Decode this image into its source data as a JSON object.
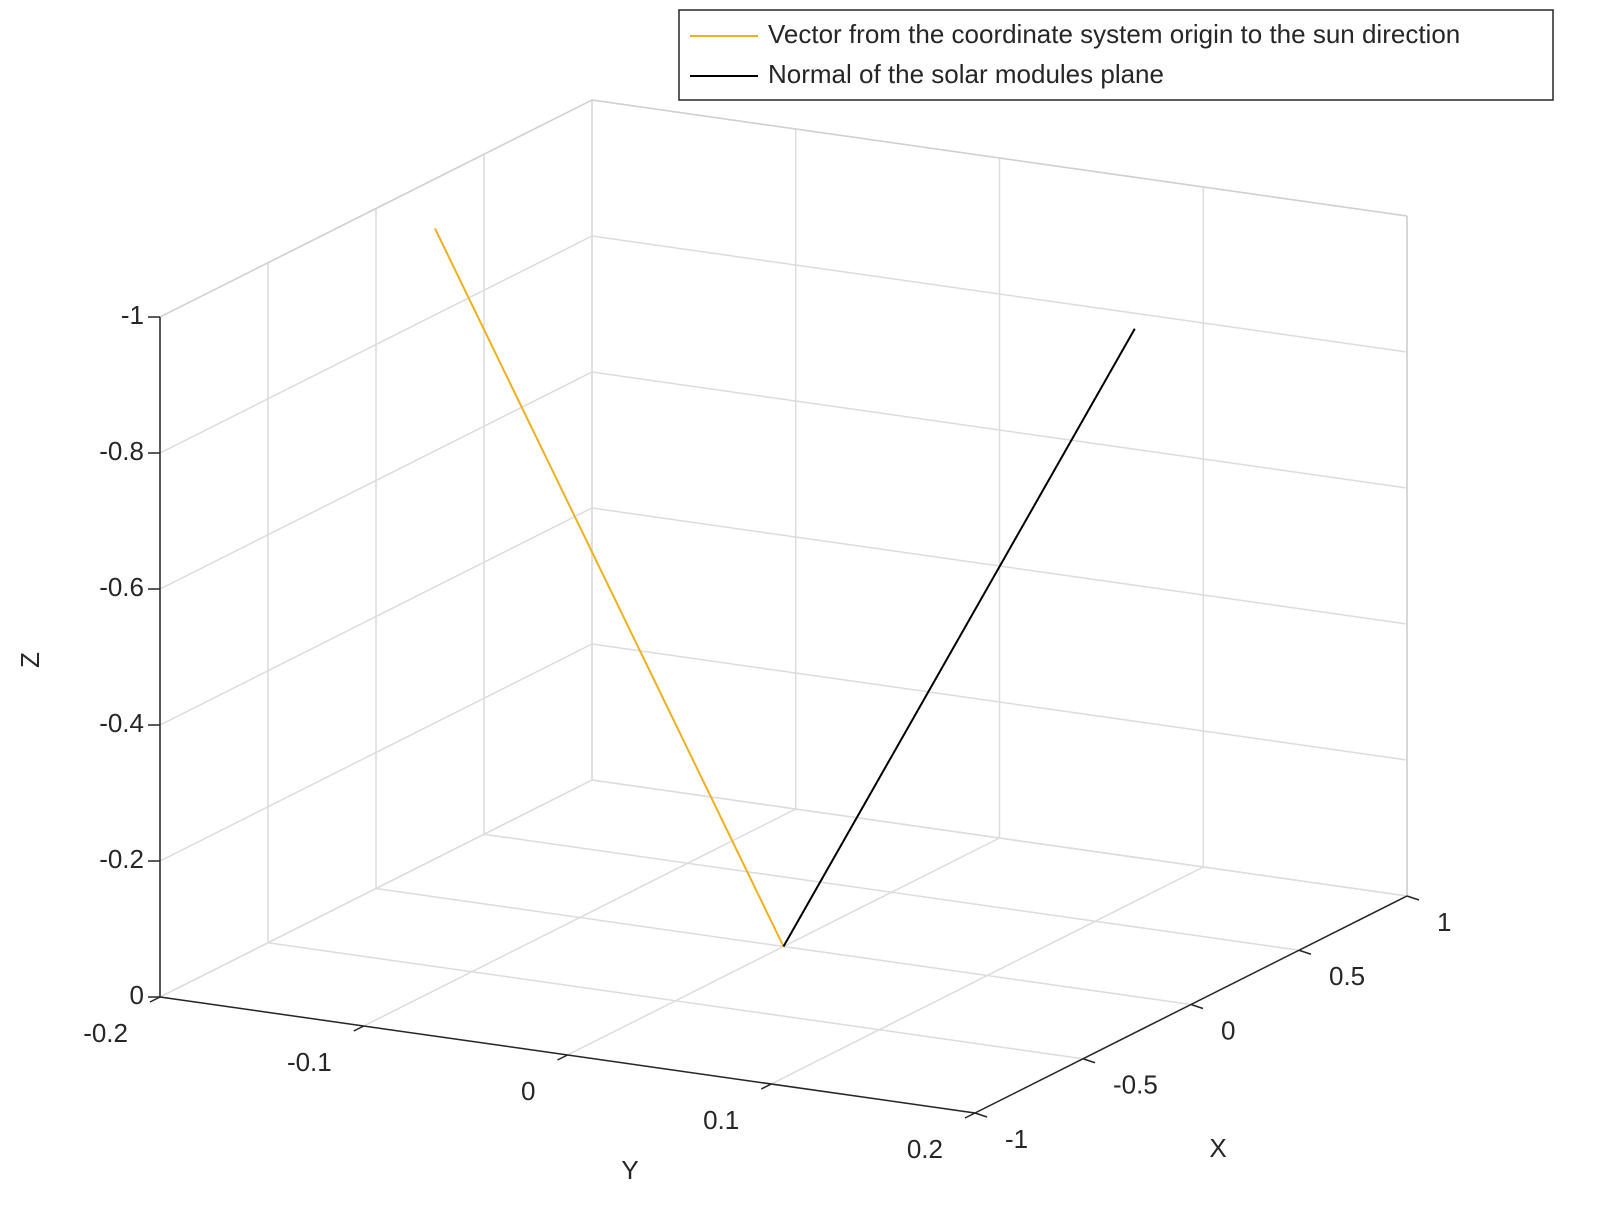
{
  "chart_data": {
    "type": "line3d",
    "series": [
      {
        "name": "Vector from the coordinate system origin to the sun direction",
        "color": "#edb120",
        "x": [
          0,
          -0.01
        ],
        "y": [
          0,
          -0.17
        ],
        "z": [
          0,
          -0.985
        ]
      },
      {
        "name": "Normal of the solar modules plane",
        "color": "#000000",
        "x": [
          0,
          0.4
        ],
        "y": [
          0,
          0.13
        ],
        "z": [
          0,
          -0.9
        ]
      }
    ],
    "xlabel": "X",
    "ylabel": "Y",
    "zlabel": "Z",
    "xlim": [
      -1,
      1
    ],
    "ylim": [
      -0.2,
      0.2
    ],
    "zlim": [
      0,
      -1
    ],
    "xticks": [
      -1,
      -0.5,
      0,
      0.5,
      1
    ],
    "yticks": [
      -0.2,
      -0.1,
      0,
      0.1,
      0.2
    ],
    "zticks": [
      0,
      -0.2,
      -0.4,
      -0.6,
      -0.8,
      -1
    ],
    "grid": true,
    "legend": "top-right"
  }
}
